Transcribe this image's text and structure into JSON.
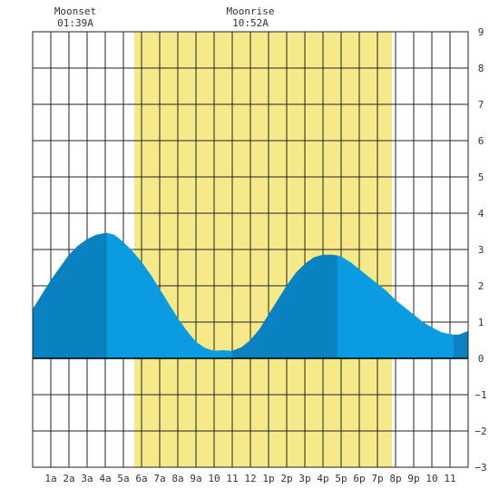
{
  "chart_data": {
    "type": "area",
    "title": "",
    "xlabel": "",
    "ylabel": "",
    "x_range_hours": [
      0,
      24
    ],
    "ylim": [
      -3,
      9
    ],
    "yticks": [
      -3,
      -2,
      -1,
      0,
      1,
      2,
      3,
      4,
      5,
      6,
      7,
      8,
      9
    ],
    "xtick_labels": [
      "1a",
      "2a",
      "3a",
      "4a",
      "5a",
      "6a",
      "7a",
      "8a",
      "9a",
      "10",
      "11",
      "12",
      "1p",
      "2p",
      "3p",
      "4p",
      "5p",
      "6p",
      "7p",
      "8p",
      "9p",
      "10",
      "11"
    ],
    "daylight_hours": [
      5.6,
      19.8
    ],
    "moon_events": [
      {
        "name": "Moonset",
        "time": "01:39A"
      },
      {
        "name": "Moonrise",
        "time": "10:52A"
      }
    ],
    "tide_extremes": [
      {
        "type": "high",
        "hour": 4.1,
        "height": 3.4
      },
      {
        "type": "low",
        "hour": 11.0,
        "height": 0.2
      },
      {
        "type": "high",
        "hour": 16.8,
        "height": 2.8
      },
      {
        "type": "low",
        "hour": 23.2,
        "height": 0.65
      }
    ],
    "series": [
      {
        "hours": [
          0.0,
          0.5,
          1.0,
          1.5,
          2.0,
          2.5,
          3.0,
          3.5,
          4.0,
          4.1,
          4.5,
          5.0,
          5.5,
          6.0,
          6.5,
          7.0,
          7.5,
          8.0,
          8.5,
          9.0,
          9.5,
          10.0,
          10.5,
          11.0,
          11.5,
          12.0,
          12.5,
          13.0,
          13.5,
          14.0,
          14.5,
          15.0,
          15.5,
          16.0,
          16.5,
          16.8,
          17.0,
          17.5,
          18.0,
          18.5,
          19.0,
          19.5,
          20.0,
          20.5,
          21.0,
          21.5,
          22.0,
          22.5,
          23.0,
          23.2,
          23.5,
          24.0
        ],
        "heights": [
          1.35,
          1.75,
          2.15,
          2.5,
          2.85,
          3.1,
          3.28,
          3.4,
          3.45,
          3.45,
          3.4,
          3.2,
          2.95,
          2.65,
          2.3,
          1.9,
          1.5,
          1.1,
          0.75,
          0.45,
          0.28,
          0.2,
          0.22,
          0.2,
          0.3,
          0.5,
          0.8,
          1.2,
          1.6,
          2.0,
          2.35,
          2.6,
          2.78,
          2.85,
          2.85,
          2.83,
          2.8,
          2.65,
          2.45,
          2.25,
          2.05,
          1.85,
          1.6,
          1.4,
          1.2,
          1.0,
          0.85,
          0.72,
          0.66,
          0.65,
          0.65,
          0.75
        ]
      }
    ],
    "colors": {
      "daylight": "#f5e98a",
      "water_light": "#0a9be0",
      "water_dark": "#0a82c1",
      "grid": "#222222",
      "background": "#ffffff"
    }
  }
}
